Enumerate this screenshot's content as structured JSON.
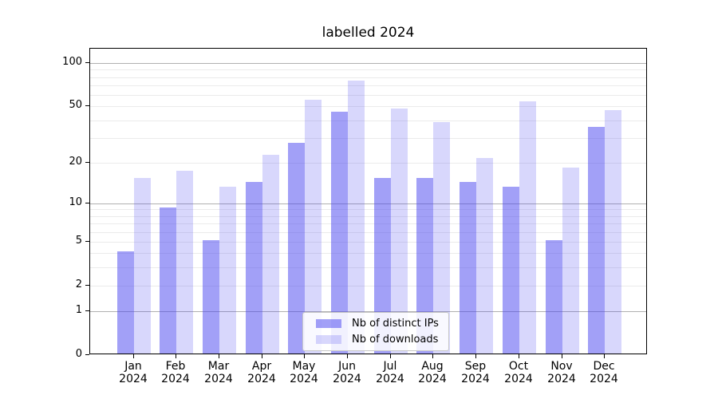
{
  "chart_data": {
    "type": "bar",
    "title": "labelled 2024",
    "categories": [
      "Jan 2024",
      "Feb 2024",
      "Mar 2024",
      "Apr 2024",
      "May 2024",
      "Jun 2024",
      "Jul 2024",
      "Aug 2024",
      "Sep 2024",
      "Oct 2024",
      "Nov 2024",
      "Dec 2024"
    ],
    "x_tick_months": [
      "Jan",
      "Feb",
      "Mar",
      "Apr",
      "May",
      "Jun",
      "Jul",
      "Aug",
      "Sep",
      "Oct",
      "Nov",
      "Dec"
    ],
    "x_tick_year": "2024",
    "series": [
      {
        "name": "Nb of distinct IPs",
        "color": "#4642f0",
        "opacity": 0.5,
        "legend_swatch": "#a2a0f7",
        "values": [
          4,
          9,
          5,
          14,
          27,
          45,
          15,
          15,
          14,
          13,
          5,
          35
        ]
      },
      {
        "name": "Nb of downloads",
        "color": "#4642f0",
        "opacity": 0.21,
        "legend_swatch": "#d8d7fc",
        "values": [
          15,
          17,
          13,
          22,
          54,
          74,
          47,
          38,
          21,
          53,
          18,
          46
        ]
      }
    ],
    "xlabel": "",
    "ylabel": "",
    "yscale": "log1p",
    "ylim": [
      0,
      126
    ],
    "yticks": [
      0,
      1,
      2,
      5,
      10,
      20,
      50,
      100
    ],
    "grid": {
      "major": [
        1,
        10,
        100
      ],
      "minor": [
        2,
        3,
        4,
        5,
        6,
        7,
        8,
        9,
        20,
        30,
        40,
        50,
        60,
        70,
        80,
        90
      ]
    },
    "legend": {
      "position": "lower center"
    },
    "colors": {
      "background": "#ffffff",
      "axis": "#000000",
      "text": "#000000",
      "major_grid": "#b0b0b0",
      "minor_grid": "#ebebeb",
      "legend_border": "#c8c8c8"
    }
  }
}
